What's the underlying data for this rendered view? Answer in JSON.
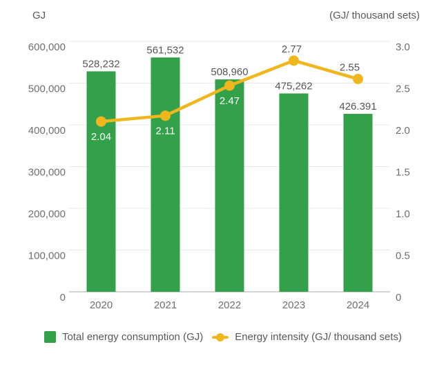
{
  "figure": {
    "left_axis_title": "GJ",
    "right_axis_title": "(GJ/ thousand sets)"
  },
  "chart_data": {
    "type": "bar",
    "combo": "bar+line",
    "title": "",
    "categories": [
      "2020",
      "2021",
      "2022",
      "2023",
      "2024"
    ],
    "series": [
      {
        "name": "Total energy consumption (GJ)",
        "type": "bar",
        "axis": "left",
        "values": [
          528232,
          561532,
          508960,
          475262,
          426391
        ],
        "value_labels": [
          "528,232",
          "561,532",
          "508,960",
          "475,262",
          "426.391"
        ]
      },
      {
        "name": "Energy intensity (GJ/ thousand sets)",
        "type": "line",
        "axis": "right",
        "values": [
          2.04,
          2.11,
          2.47,
          2.77,
          2.55
        ],
        "value_labels": [
          "2.04",
          "2.11",
          "2.47",
          "2.77",
          "2.55"
        ],
        "label_positions": [
          "below",
          "below",
          "below",
          "above",
          "above"
        ],
        "label_dx": [
          0,
          0,
          0,
          -3,
          -12
        ],
        "label_colors": [
          "#FFFFFF",
          "#FFFFFF",
          "#FFFFFF",
          "#555555",
          "#555555"
        ]
      }
    ],
    "left_axis": {
      "title": "GJ",
      "min": 0,
      "max": 600000,
      "tick_interval": 100000,
      "tick_labels": [
        "0",
        "100,000",
        "200,000",
        "300,000",
        "400,000",
        "500,000",
        "600,000"
      ]
    },
    "right_axis": {
      "title": "(GJ/ thousand sets)",
      "min": 0,
      "max": 3.0,
      "tick_interval": 0.5,
      "tick_labels": [
        "0",
        "0.5",
        "1.0",
        "1.5",
        "2.0",
        "2.5",
        "3.0"
      ]
    },
    "grid": true,
    "legend_position": "bottom"
  },
  "legend": {
    "items": [
      {
        "label": "Total energy consumption (GJ)",
        "marker": "square",
        "color": "#32A14A"
      },
      {
        "label": "Energy intensity (GJ/ thousand sets)",
        "marker": "line-dot",
        "color": "#EFB71D"
      }
    ]
  },
  "colors": {
    "bar": "#32A14A",
    "line": "#EFB71D",
    "grid": "#E8E8E8",
    "axis_line": "#D3D3D3",
    "tick_text": "#6F6F6F",
    "value_text": "#555555",
    "label_on_bar": "#FFFFFF",
    "background": "#FFFFFF"
  }
}
